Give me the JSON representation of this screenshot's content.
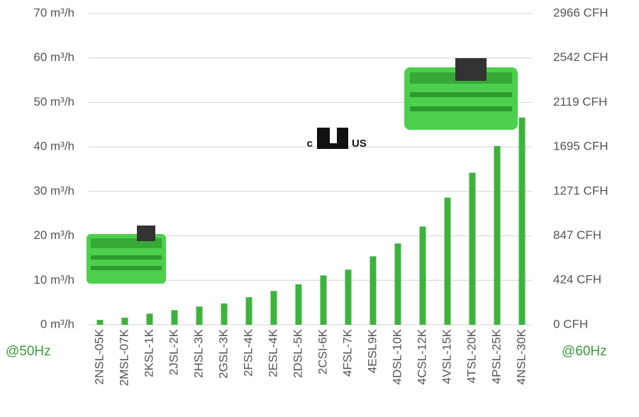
{
  "chart_data": {
    "type": "bar",
    "categories": [
      "2NSL-05K",
      "2MSL-07K",
      "2KSL-1K",
      "2JSL-2K",
      "2HSL-3K",
      "2GSL-3K",
      "2FSL-4K",
      "2ESL-4K",
      "2DSL-5K",
      "2CSI-6K",
      "4FSL-7K",
      "4ESL9K",
      "4DSL-10K",
      "4CSL-12K",
      "4VSL-15K",
      "4TSL-20K",
      "4PSL-25K",
      "4NSL-30K"
    ],
    "values": [
      1.1,
      1.6,
      2.5,
      3.3,
      4.1,
      4.8,
      6.2,
      7.6,
      9.1,
      11.1,
      12.4,
      15.4,
      18.3,
      22.1,
      28.6,
      34.2,
      40.2,
      46.6
    ],
    "color": "#3db33d",
    "ylim": [
      0,
      70
    ],
    "yticks": [
      {
        "value": 0,
        "label": "0 m³/h"
      },
      {
        "value": 10,
        "label": "10 m³/h"
      },
      {
        "value": 20,
        "label": "20 m³/h"
      },
      {
        "value": 30,
        "label": "30 m³/h"
      },
      {
        "value": 40,
        "label": "40 m³/h"
      },
      {
        "value": 50,
        "label": "50 m³/h"
      },
      {
        "value": 60,
        "label": "60 m³/h"
      },
      {
        "value": 70,
        "label": "70 m³/h"
      }
    ],
    "y2lim": [
      0,
      2966
    ],
    "y2ticks": [
      {
        "value": 0,
        "label": "0 CFH"
      },
      {
        "value": 424,
        "label": "424 CFH"
      },
      {
        "value": 847,
        "label": "847 CFH"
      },
      {
        "value": 1271,
        "label": "1271 CFH"
      },
      {
        "value": 1695,
        "label": "1695 CFH"
      },
      {
        "value": 2119,
        "label": "2119 CFH"
      },
      {
        "value": 2542,
        "label": "2542 CFH"
      },
      {
        "value": 2966,
        "label": "2966 CFH"
      }
    ],
    "grid": true,
    "annotations": [
      "@50Hz",
      "@60Hz"
    ],
    "logo_texts": [
      "c",
      "US"
    ]
  }
}
